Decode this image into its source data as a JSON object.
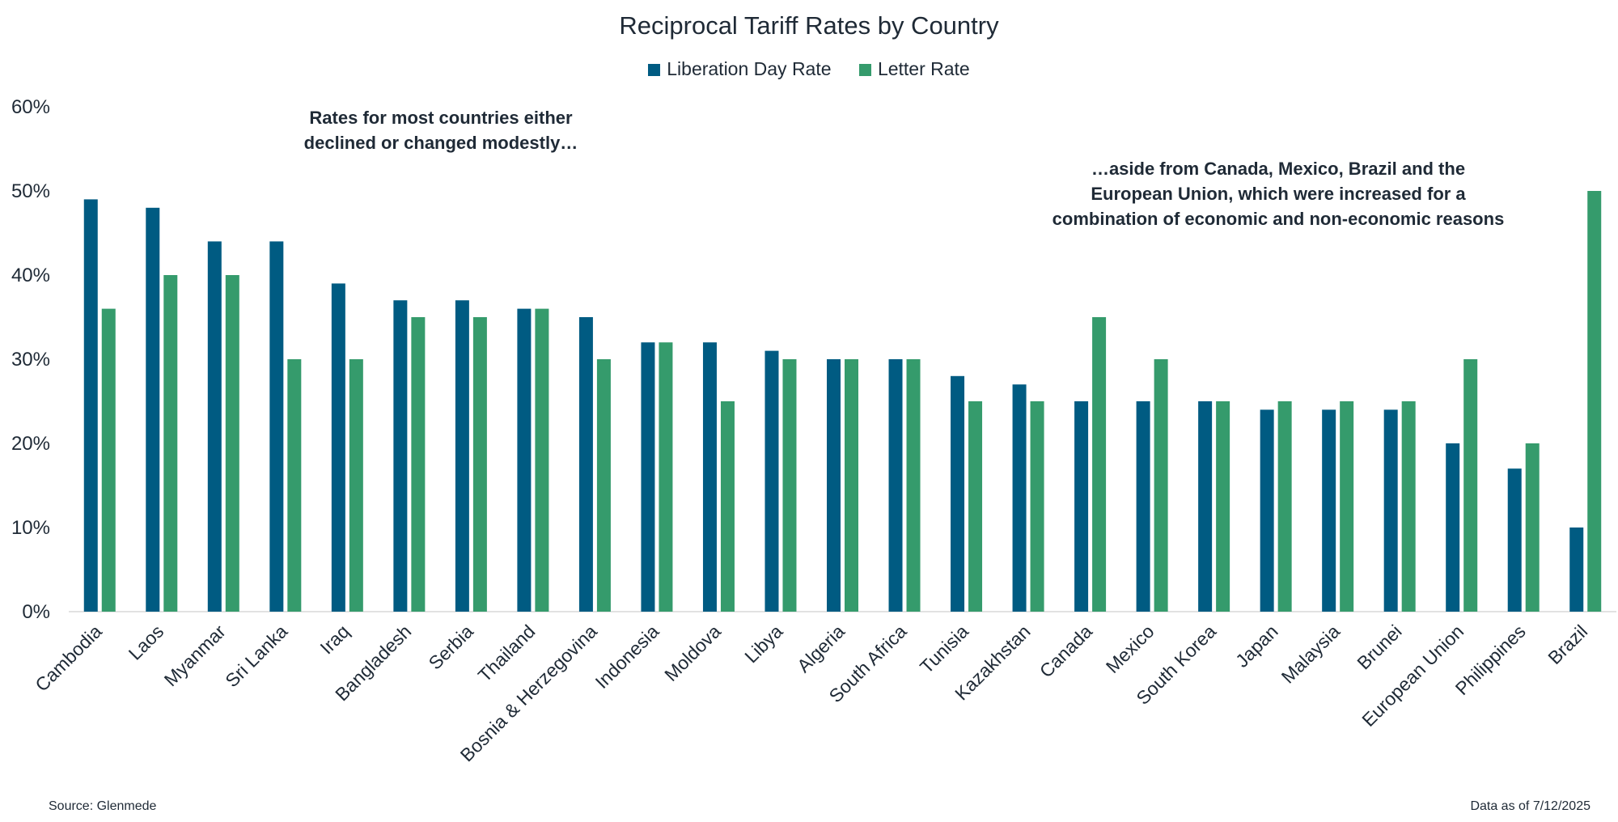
{
  "chart_data": {
    "type": "bar",
    "title": "Reciprocal Tariff Rates by Country",
    "categories": [
      "Cambodia",
      "Laos",
      "Myanmar",
      "Sri Lanka",
      "Iraq",
      "Bangladesh",
      "Serbia",
      "Thailand",
      "Bosnia & Herzegovina",
      "Indonesia",
      "Moldova",
      "Libya",
      "Algeria",
      "South Africa",
      "Tunisia",
      "Kazakhstan",
      "Canada",
      "Mexico",
      "South Korea",
      "Japan",
      "Malaysia",
      "Brunei",
      "European Union",
      "Philippines",
      "Brazil"
    ],
    "series": [
      {
        "name": "Liberation Day Rate",
        "color": "#005b82",
        "values": [
          49,
          48,
          44,
          44,
          39,
          37,
          37,
          36,
          35,
          32,
          32,
          31,
          30,
          30,
          28,
          27,
          25,
          25,
          25,
          24,
          24,
          24,
          20,
          17,
          10
        ]
      },
      {
        "name": "Letter Rate",
        "color": "#359b6c",
        "values": [
          36,
          40,
          40,
          30,
          30,
          35,
          35,
          36,
          30,
          32,
          25,
          30,
          30,
          30,
          25,
          25,
          35,
          30,
          25,
          25,
          25,
          25,
          30,
          20,
          50
        ]
      }
    ],
    "xlabel": "",
    "ylabel": "",
    "ylim": [
      0,
      60
    ],
    "yticks": [
      0,
      10,
      20,
      30,
      40,
      50,
      60
    ],
    "ytick_format": "percent",
    "grid": false,
    "legend_position": "top-center",
    "annotations": [
      "Rates for most countries either declined or changed modestly…",
      "…aside from Canada, Mexico, Brazil and the European Union, which were increased for a combination of economic and non-economic reasons"
    ]
  },
  "footer": {
    "source": "Source: Glenmede",
    "date_note": "Data as of 7/12/2025"
  }
}
